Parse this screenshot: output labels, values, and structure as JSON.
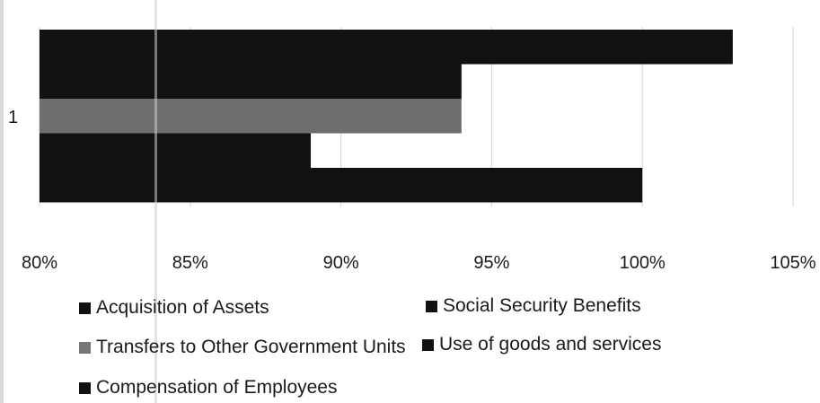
{
  "chart_data": {
    "type": "bar",
    "orientation": "horizontal",
    "categories": [
      "1"
    ],
    "series": [
      {
        "name": "Acquisition of Assets",
        "values": [
          103
        ],
        "color": "#111111"
      },
      {
        "name": "Social Security Benefits",
        "values": [
          94
        ],
        "color": "#111111"
      },
      {
        "name": "Transfers to Other Government Units",
        "values": [
          94
        ],
        "color": "#6e6e6e"
      },
      {
        "name": "Use of goods and services",
        "values": [
          89
        ],
        "color": "#111111"
      },
      {
        "name": "Compensation of Employees",
        "values": [
          100
        ],
        "color": "#111111"
      }
    ],
    "xlim": [
      80,
      105
    ],
    "x_ticks": [
      "80%",
      "85%",
      "90%",
      "95%",
      "100%",
      "105%"
    ],
    "grid": true,
    "legend_position": "bottom"
  },
  "legend": {
    "items": [
      {
        "label": "Acquisition of Assets",
        "color": "#111111"
      },
      {
        "label": "Social Security Benefits",
        "color": "#111111"
      },
      {
        "label": "Transfers to Other Government Units",
        "color": "#777777"
      },
      {
        "label": "Use of goods and services",
        "color": "#111111"
      },
      {
        "label": "Compensation of Employees",
        "color": "#111111"
      }
    ]
  }
}
